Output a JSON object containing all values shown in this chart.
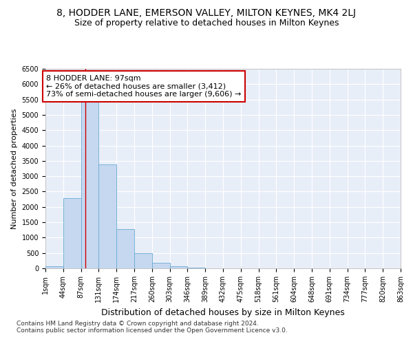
{
  "title_line1": "8, HODDER LANE, EMERSON VALLEY, MILTON KEYNES, MK4 2LJ",
  "title_line2": "Size of property relative to detached houses in Milton Keynes",
  "xlabel": "Distribution of detached houses by size in Milton Keynes",
  "ylabel": "Number of detached properties",
  "footnote": "Contains HM Land Registry data © Crown copyright and database right 2024.\nContains public sector information licensed under the Open Government Licence v3.0.",
  "bin_labels": [
    "1sqm",
    "44sqm",
    "87sqm",
    "131sqm",
    "174sqm",
    "217sqm",
    "260sqm",
    "303sqm",
    "346sqm",
    "389sqm",
    "432sqm",
    "475sqm",
    "518sqm",
    "561sqm",
    "604sqm",
    "648sqm",
    "691sqm",
    "734sqm",
    "777sqm",
    "820sqm",
    "863sqm"
  ],
  "bar_values": [
    70,
    2280,
    5420,
    3380,
    1280,
    490,
    175,
    75,
    20,
    5,
    2,
    1,
    0,
    0,
    0,
    0,
    0,
    0,
    0,
    0
  ],
  "bar_color": "#c5d8f0",
  "bar_edge_color": "#6aaad4",
  "vline_x_index": 2.24,
  "annotation_text": "8 HODDER LANE: 97sqm\n← 26% of detached houses are smaller (3,412)\n73% of semi-detached houses are larger (9,606) →",
  "annotation_box_color": "#ffffff",
  "annotation_box_edge": "#cc0000",
  "vline_color": "#cc0000",
  "ylim": [
    0,
    6500
  ],
  "yticks": [
    0,
    500,
    1000,
    1500,
    2000,
    2500,
    3000,
    3500,
    4000,
    4500,
    5000,
    5500,
    6000,
    6500
  ],
  "bg_color": "#e8eef8",
  "fig_bg_color": "#ffffff",
  "grid_color": "#ffffff",
  "title1_fontsize": 10,
  "title2_fontsize": 9,
  "xlabel_fontsize": 9,
  "ylabel_fontsize": 8,
  "tick_fontsize": 7,
  "annotation_fontsize": 8,
  "footnote_fontsize": 6.5
}
